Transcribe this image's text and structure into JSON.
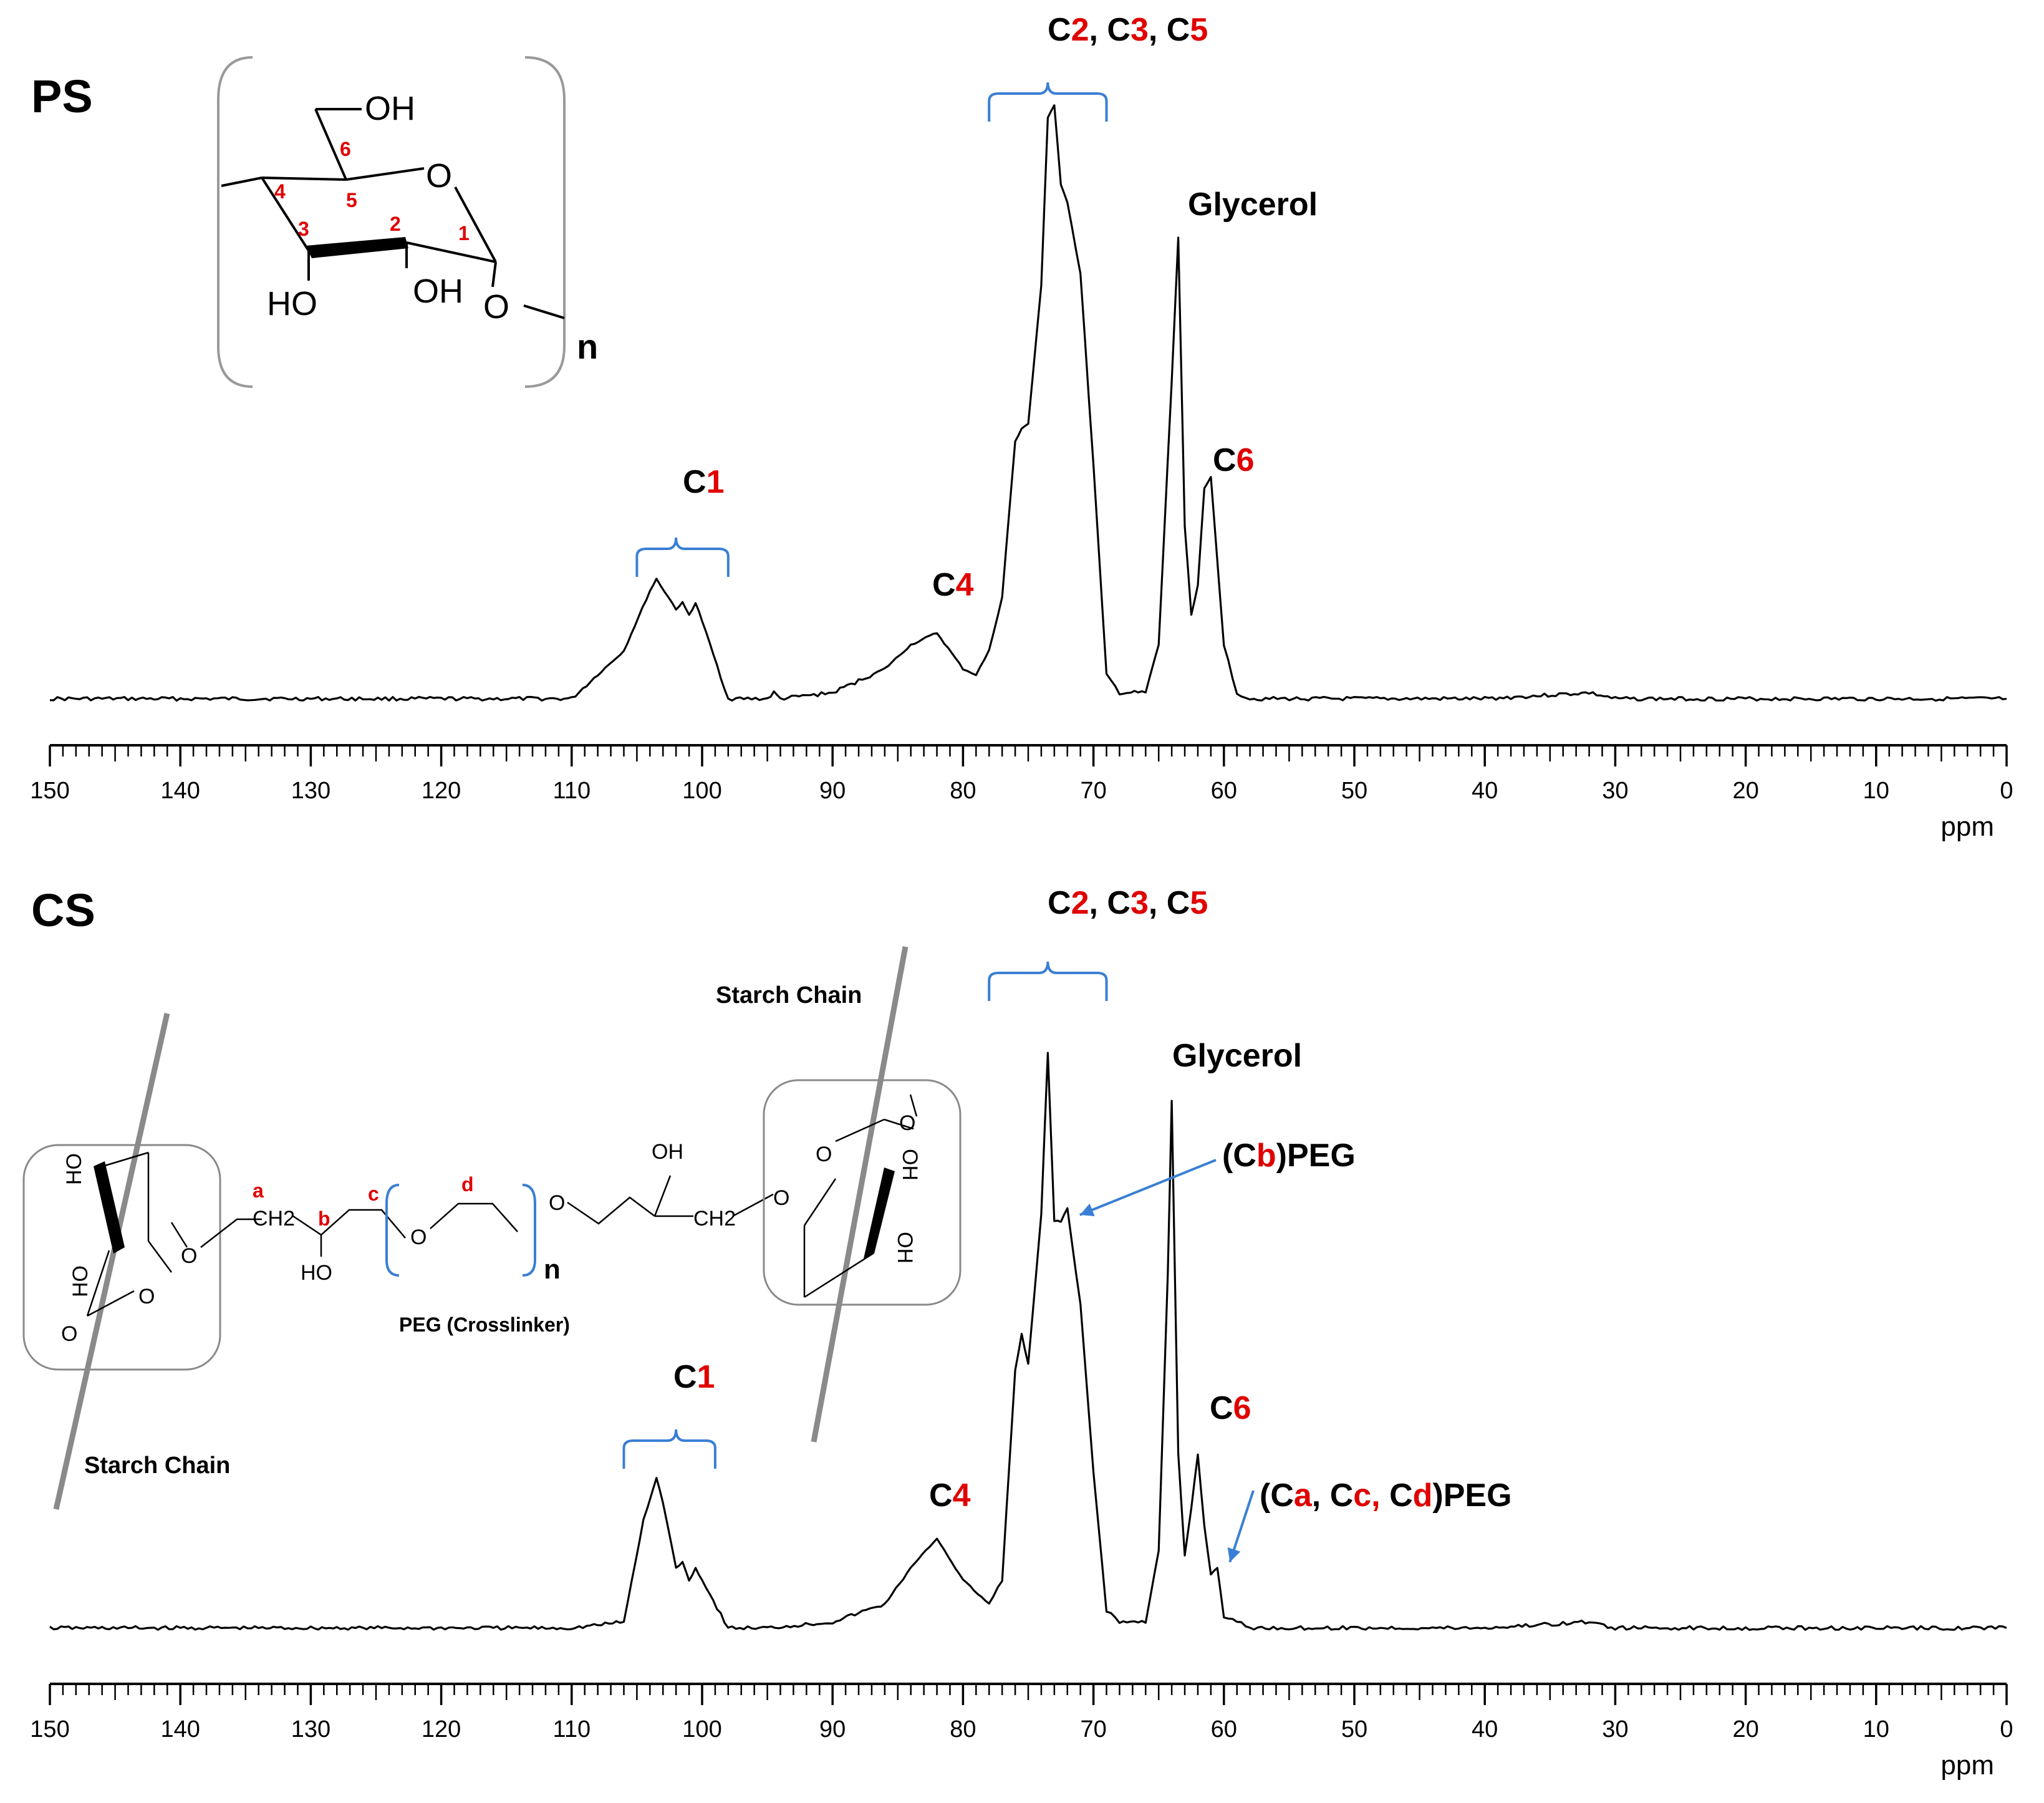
{
  "chart_data": [
    {
      "type": "line",
      "panel_label": "PS",
      "xlabel": "ppm",
      "xlim": [
        150,
        0
      ],
      "x_reversed": true,
      "x_ticks": [
        150,
        140,
        130,
        120,
        110,
        100,
        90,
        80,
        70,
        60,
        50,
        40,
        30,
        20,
        10,
        0
      ],
      "series": [
        {
          "x": [
            150,
            140,
            130,
            120,
            110,
            106,
            104,
            103.5,
            102,
            101.5,
            101,
            100.5,
            100,
            98,
            95,
            94.5,
            94,
            90,
            86,
            84,
            82,
            80,
            79,
            78,
            77,
            76,
            75.5,
            75,
            74,
            73.5,
            73,
            72.5,
            72,
            71,
            70,
            69,
            68,
            66,
            65,
            64,
            63.5,
            63,
            62.5,
            62,
            61.5,
            61,
            60,
            59,
            58,
            55,
            50,
            40,
            32,
            30,
            20,
            10,
            0
          ],
          "y": [
            0.01,
            0.01,
            0.01,
            0.01,
            0.01,
            0.09,
            0.19,
            0.21,
            0.16,
            0.17,
            0.15,
            0.17,
            0.14,
            0.01,
            0.01,
            0.02,
            0.01,
            0.02,
            0.06,
            0.1,
            0.12,
            0.06,
            0.05,
            0.09,
            0.18,
            0.44,
            0.46,
            0.47,
            0.7,
            0.98,
            1.0,
            0.87,
            0.84,
            0.72,
            0.4,
            0.05,
            0.02,
            0.02,
            0.1,
            0.54,
            0.78,
            0.3,
            0.15,
            0.2,
            0.36,
            0.38,
            0.1,
            0.02,
            0.01,
            0.01,
            0.01,
            0.01,
            0.02,
            0.01,
            0.01,
            0.01,
            0.01
          ]
        }
      ],
      "annotations": [
        {
          "label_parts": [
            "C",
            "2",
            ", C",
            "3",
            ", C",
            "5"
          ],
          "x": 73.5,
          "bracket": [
            78,
            69
          ]
        },
        {
          "label_parts": [
            "C",
            "1"
          ],
          "x": 102,
          "bracket": [
            105,
            98
          ]
        },
        {
          "label_parts": [
            "C",
            "4"
          ],
          "x": 82
        },
        {
          "label_parts": [
            "Glycerol"
          ],
          "x": 63.5
        },
        {
          "label_parts": [
            "C",
            "6"
          ],
          "x": 61
        }
      ],
      "structure": {
        "labels": [
          "OH",
          "O",
          "HO",
          "OH",
          "O",
          "n"
        ],
        "numbers": [
          "6",
          "5",
          "4",
          "3",
          "2",
          "1"
        ]
      }
    },
    {
      "type": "line",
      "panel_label": "CS",
      "xlabel": "ppm",
      "xlim": [
        150,
        0
      ],
      "x_reversed": true,
      "x_ticks": [
        150,
        140,
        130,
        120,
        110,
        100,
        90,
        80,
        70,
        60,
        50,
        40,
        30,
        20,
        10,
        0
      ],
      "series": [
        {
          "x": [
            150,
            140,
            130,
            120,
            110,
            106,
            104.5,
            103.5,
            103,
            102,
            101.5,
            101,
            100.5,
            100,
            98,
            95,
            90,
            86,
            84,
            82,
            80,
            78,
            77,
            76,
            75.5,
            75,
            74,
            73.5,
            73,
            72.5,
            72,
            71,
            70,
            69,
            68,
            66,
            65,
            64.3,
            64,
            63.5,
            63,
            62.5,
            62,
            61.5,
            61,
            60.5,
            60,
            59,
            58,
            55,
            50,
            40,
            32,
            30,
            20,
            10,
            0
          ],
          "y": [
            0.01,
            0.01,
            0.01,
            0.01,
            0.01,
            0.02,
            0.19,
            0.26,
            0.22,
            0.11,
            0.12,
            0.09,
            0.11,
            0.09,
            0.01,
            0.01,
            0.02,
            0.05,
            0.11,
            0.16,
            0.09,
            0.05,
            0.09,
            0.44,
            0.5,
            0.45,
            0.7,
            0.97,
            0.69,
            0.69,
            0.71,
            0.55,
            0.27,
            0.04,
            0.02,
            0.02,
            0.14,
            0.6,
            0.89,
            0.3,
            0.13,
            0.21,
            0.3,
            0.18,
            0.1,
            0.11,
            0.03,
            0.02,
            0.01,
            0.01,
            0.01,
            0.01,
            0.02,
            0.01,
            0.01,
            0.01,
            0.01
          ]
        }
      ],
      "annotations": [
        {
          "label_parts": [
            "C",
            "2",
            ", C",
            "3",
            ", C",
            "5"
          ],
          "x": 73.5,
          "bracket": [
            78,
            69
          ]
        },
        {
          "label_parts": [
            "C",
            "1"
          ],
          "x": 102,
          "bracket": [
            106,
            99
          ]
        },
        {
          "label_parts": [
            "C",
            "4"
          ],
          "x": 82
        },
        {
          "label_parts": [
            "Glycerol"
          ],
          "x": 64
        },
        {
          "label_parts": [
            "C",
            "6"
          ],
          "x": 61
        },
        {
          "label_parts": [
            "(C",
            "b",
            ")PEG"
          ],
          "x": 72,
          "arrow": true
        },
        {
          "label_parts": [
            "(C",
            "a",
            ", C",
            "c, ",
            "C",
            "d",
            ")PEG"
          ],
          "x": 60.5,
          "arrow": true
        }
      ],
      "structure": {
        "captions": [
          "Starch Chain",
          "Starch Chain",
          "PEG (Crosslinker)"
        ],
        "labels": [
          "HO",
          "HO",
          "O",
          "O",
          "O",
          "CH2",
          "HO",
          "O",
          "O",
          "n",
          "OH",
          "CH2",
          "O",
          "O",
          "O",
          "OH",
          "OH"
        ],
        "letters": [
          "a",
          "b",
          "c",
          "d"
        ]
      }
    }
  ]
}
